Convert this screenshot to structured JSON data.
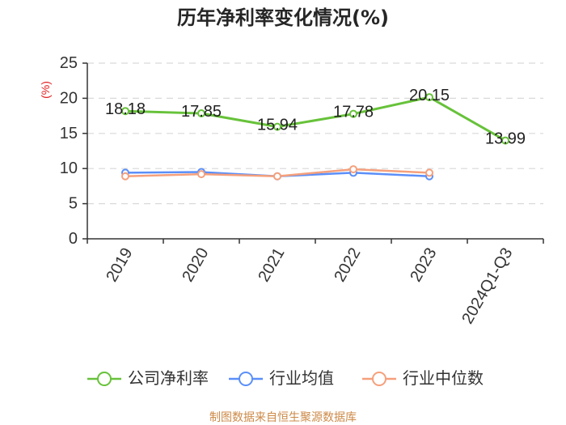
{
  "source_note": "制图数据来自恒生聚源数据库",
  "chart_data": {
    "type": "line",
    "title": "历年净利率变化情况(%)",
    "ylabel": "(%)",
    "categories": [
      "2019",
      "2020",
      "2021",
      "2022",
      "2023",
      "2024Q1-Q3"
    ],
    "ylim": [
      0,
      25
    ],
    "yticks": [
      0,
      5,
      10,
      15,
      20,
      25
    ],
    "grid": true,
    "legend": "bottom",
    "series": [
      {
        "name": "公司净利率",
        "color": "#67c23a",
        "show_labels": true,
        "values": [
          18.18,
          17.85,
          15.94,
          17.78,
          20.15,
          13.99
        ]
      },
      {
        "name": "行业均值",
        "color": "#5b8ff9",
        "show_labels": false,
        "values": [
          9.4,
          9.5,
          8.9,
          9.4,
          8.9,
          null
        ]
      },
      {
        "name": "行业中位数",
        "color": "#f5a07c",
        "show_labels": false,
        "values": [
          8.9,
          9.2,
          8.9,
          9.9,
          9.4,
          null
        ]
      }
    ]
  }
}
